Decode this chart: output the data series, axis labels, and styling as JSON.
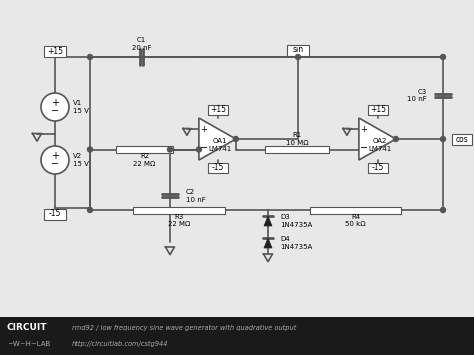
{
  "bg_color": "#e8e8e8",
  "circuit_bg": "#eeeeee",
  "line_color": "#555555",
  "line_width": 1.2,
  "footer_bg": "#1a1a1a",
  "footer_text_color": "#bbbbbb",
  "footer_right1": "rmd92 / low frequency sine wave generator with quadrative output",
  "footer_right2": "http://circuitlab.com/cstg944",
  "labels": {
    "C1": "C1\n20 nF",
    "C2": "C2\n10 nF",
    "C3": "C3\n10 nF",
    "R1": "R1\n10 MΩ",
    "R2": "R2\n22 MΩ",
    "R3": "R3\n22 MΩ",
    "R4": "R4\n50 kΩ",
    "V1": "V1\n15 V",
    "V2": "V2\n15 V",
    "OA1": "OA1\nLM741",
    "OA2": "OA2\nLM741",
    "D3": "D3\n1N4735A",
    "D4": "D4\n1N4735A"
  }
}
